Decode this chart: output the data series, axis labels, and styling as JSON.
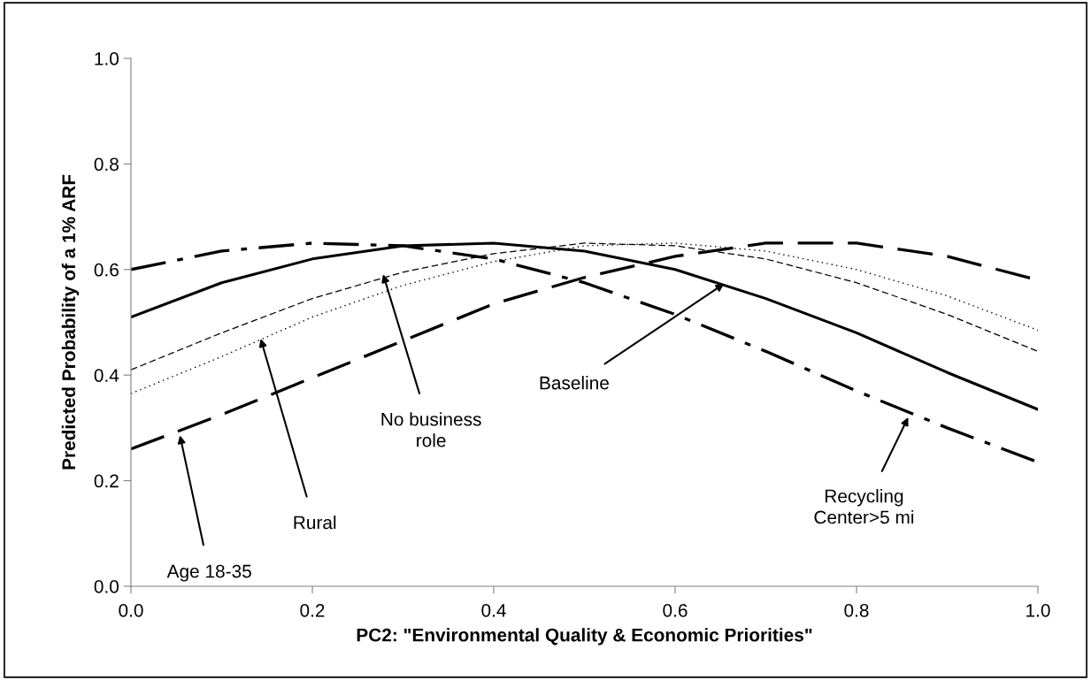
{
  "chart_data": {
    "type": "line",
    "xlabel": "PC2: \"Environmental Quality & Economic Priorities\"",
    "ylabel": "Predicted Probability of a 1% ARF",
    "x": [
      0,
      0.1,
      0.2,
      0.3,
      0.4,
      0.5,
      0.6,
      0.7,
      0.8,
      0.9,
      1.0
    ],
    "series": [
      {
        "color": "#000000",
        "line_style": "solid",
        "values": [
          0.51,
          0.575,
          0.62,
          0.645,
          0.65,
          0.635,
          0.6,
          0.545,
          0.48,
          0.405,
          0.335
        ]
      },
      {
        "color": "#000000",
        "line_style": "dashdot",
        "values": [
          0.6,
          0.635,
          0.65,
          0.645,
          0.62,
          0.575,
          0.515,
          0.445,
          0.37,
          0.3,
          0.235
        ]
      },
      {
        "color": "#000000",
        "line_style": "longdash",
        "values": [
          0.26,
          0.325,
          0.395,
          0.465,
          0.535,
          0.585,
          0.625,
          0.65,
          0.65,
          0.625,
          0.58
        ]
      },
      {
        "color": "#000000",
        "line_style": "dashed",
        "values": [
          0.41,
          0.48,
          0.545,
          0.595,
          0.63,
          0.65,
          0.645,
          0.62,
          0.575,
          0.515,
          0.445
        ]
      },
      {
        "color": "#000000",
        "line_style": "dotted",
        "values": [
          0.365,
          0.435,
          0.51,
          0.57,
          0.615,
          0.645,
          0.65,
          0.635,
          0.6,
          0.55,
          0.485
        ]
      }
    ],
    "annotations": [
      {
        "text": "Age 18-35",
        "x": 0.054,
        "y": 0.286
      },
      {
        "text": "Rural",
        "x": 0.143,
        "y": 0.469
      },
      {
        "text": "No business\nrole",
        "x": 0.278,
        "y": 0.591
      },
      {
        "text": "Baseline",
        "x": 0.654,
        "y": 0.573
      },
      {
        "text": "Recycling\nCenter>5 mi",
        "x": 0.857,
        "y": 0.32
      }
    ],
    "xlim": [
      0,
      1.0
    ],
    "xticks": [
      {
        "value": 0,
        "label": "0.0"
      },
      0.2,
      0.4,
      0.6,
      0.8,
      {
        "value": 1.0,
        "label": "1.0"
      }
    ],
    "ylim": [
      0,
      1.0
    ],
    "yticks": [
      {
        "value": 0,
        "label": "0.0"
      },
      0.2,
      0.4,
      0.6,
      0.8,
      {
        "value": 1.0,
        "label": "1.0"
      }
    ],
    "grid": false,
    "legend": false
  }
}
